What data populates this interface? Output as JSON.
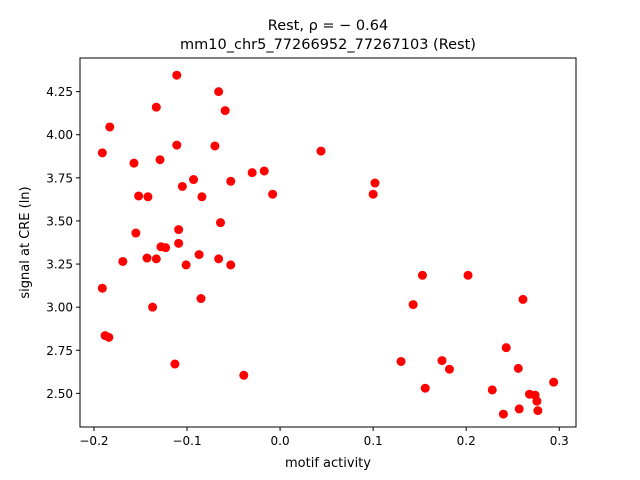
{
  "chart_data": {
    "type": "scatter",
    "title_line1": "Rest, ρ = − 0.64",
    "title_line2": "mm10_chr5_77266952_77267103 (Rest)",
    "xlabel": "motif activity",
    "ylabel": "signal at CRE (ln)",
    "xlim": [
      -0.215,
      0.318
    ],
    "ylim": [
      2.305,
      4.445
    ],
    "xticks": [
      -0.2,
      -0.1,
      0.0,
      0.1,
      0.2,
      0.3
    ],
    "xtick_labels": [
      "−0.2",
      "−0.1",
      "0.0",
      "0.1",
      "0.2",
      "0.3"
    ],
    "yticks": [
      2.5,
      2.75,
      3.0,
      3.25,
      3.5,
      3.75,
      4.0,
      4.25
    ],
    "ytick_labels": [
      "2.50",
      "2.75",
      "3.00",
      "3.25",
      "3.50",
      "3.75",
      "4.00",
      "4.25"
    ],
    "grid": false,
    "marker_color": "#ff0000",
    "points": [
      {
        "x": -0.111,
        "y": 4.345
      },
      {
        "x": -0.066,
        "y": 4.25
      },
      {
        "x": -0.133,
        "y": 4.16
      },
      {
        "x": -0.059,
        "y": 4.14
      },
      {
        "x": -0.183,
        "y": 4.045
      },
      {
        "x": -0.111,
        "y": 3.94
      },
      {
        "x": -0.07,
        "y": 3.935
      },
      {
        "x": -0.191,
        "y": 3.895
      },
      {
        "x": 0.044,
        "y": 3.905
      },
      {
        "x": -0.129,
        "y": 3.855
      },
      {
        "x": -0.157,
        "y": 3.835
      },
      {
        "x": -0.017,
        "y": 3.79
      },
      {
        "x": -0.03,
        "y": 3.78
      },
      {
        "x": -0.093,
        "y": 3.74
      },
      {
        "x": -0.053,
        "y": 3.73
      },
      {
        "x": 0.102,
        "y": 3.72
      },
      {
        "x": -0.105,
        "y": 3.7
      },
      {
        "x": -0.008,
        "y": 3.655
      },
      {
        "x": 0.1,
        "y": 3.655
      },
      {
        "x": -0.152,
        "y": 3.645
      },
      {
        "x": -0.142,
        "y": 3.64
      },
      {
        "x": -0.084,
        "y": 3.64
      },
      {
        "x": -0.064,
        "y": 3.49
      },
      {
        "x": -0.109,
        "y": 3.45
      },
      {
        "x": -0.155,
        "y": 3.43
      },
      {
        "x": -0.109,
        "y": 3.37
      },
      {
        "x": -0.128,
        "y": 3.35
      },
      {
        "x": -0.123,
        "y": 3.345
      },
      {
        "x": -0.087,
        "y": 3.305
      },
      {
        "x": -0.143,
        "y": 3.285
      },
      {
        "x": -0.133,
        "y": 3.28
      },
      {
        "x": -0.066,
        "y": 3.28
      },
      {
        "x": -0.169,
        "y": 3.265
      },
      {
        "x": -0.101,
        "y": 3.245
      },
      {
        "x": -0.053,
        "y": 3.245
      },
      {
        "x": 0.153,
        "y": 3.185
      },
      {
        "x": 0.202,
        "y": 3.185
      },
      {
        "x": -0.191,
        "y": 3.11
      },
      {
        "x": -0.085,
        "y": 3.05
      },
      {
        "x": 0.261,
        "y": 3.045
      },
      {
        "x": 0.143,
        "y": 3.015
      },
      {
        "x": -0.137,
        "y": 3.0
      },
      {
        "x": -0.188,
        "y": 2.835
      },
      {
        "x": -0.184,
        "y": 2.825
      },
      {
        "x": 0.243,
        "y": 2.765
      },
      {
        "x": 0.174,
        "y": 2.69
      },
      {
        "x": 0.13,
        "y": 2.685
      },
      {
        "x": -0.113,
        "y": 2.67
      },
      {
        "x": 0.182,
        "y": 2.64
      },
      {
        "x": 0.256,
        "y": 2.645
      },
      {
        "x": -0.039,
        "y": 2.605
      },
      {
        "x": 0.294,
        "y": 2.565
      },
      {
        "x": 0.156,
        "y": 2.53
      },
      {
        "x": 0.228,
        "y": 2.52
      },
      {
        "x": 0.268,
        "y": 2.495
      },
      {
        "x": 0.274,
        "y": 2.49
      },
      {
        "x": 0.276,
        "y": 2.455
      },
      {
        "x": 0.257,
        "y": 2.41
      },
      {
        "x": 0.277,
        "y": 2.4
      },
      {
        "x": 0.24,
        "y": 2.38
      }
    ]
  }
}
